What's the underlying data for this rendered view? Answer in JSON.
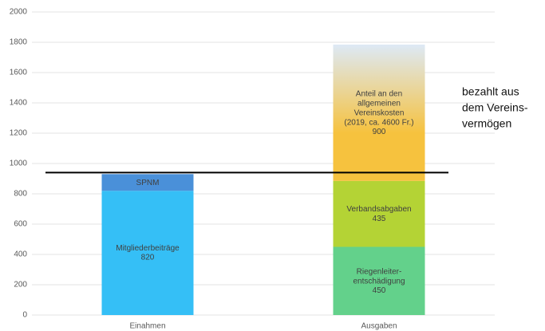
{
  "chart_data": {
    "type": "stacked_bar",
    "categories": [
      "Einahmen",
      "Ausgaben"
    ],
    "series": [
      {
        "name": "Mitgliederbeiträge",
        "color": "#35bff6",
        "values": [
          820,
          null
        ],
        "value_labels": [
          "820",
          null
        ]
      },
      {
        "name": "SPNM",
        "color": "#4a90d9",
        "values": [
          110,
          null
        ],
        "value_labels": [
          null,
          null
        ]
      },
      {
        "name": "Riegenleiter-\nentschädigung",
        "color": "#63d18b",
        "values": [
          null,
          450
        ],
        "value_labels": [
          null,
          "450"
        ]
      },
      {
        "name": "Verbandsabgaben",
        "color": "#b4d335",
        "values": [
          null,
          435
        ],
        "value_labels": [
          null,
          "435"
        ]
      },
      {
        "name": "Anteil an den\nallgemeinen\nVereinskosten\n(2019, ca. 4600 Fr.)",
        "color": "#f6c23e",
        "gradient_to": "#dde9f6",
        "values": [
          null,
          900
        ],
        "value_labels": [
          null,
          "900"
        ]
      }
    ],
    "ylim": [
      0,
      2000
    ],
    "yticks": [
      0,
      200,
      400,
      600,
      800,
      1000,
      1200,
      1400,
      1600,
      1800,
      2000
    ],
    "grid": true,
    "reference_line": {
      "value": 940,
      "color": "#000000"
    },
    "annotation": {
      "lines": [
        "bezahlt aus",
        "dem Vereins-",
        "vermögen"
      ]
    }
  }
}
